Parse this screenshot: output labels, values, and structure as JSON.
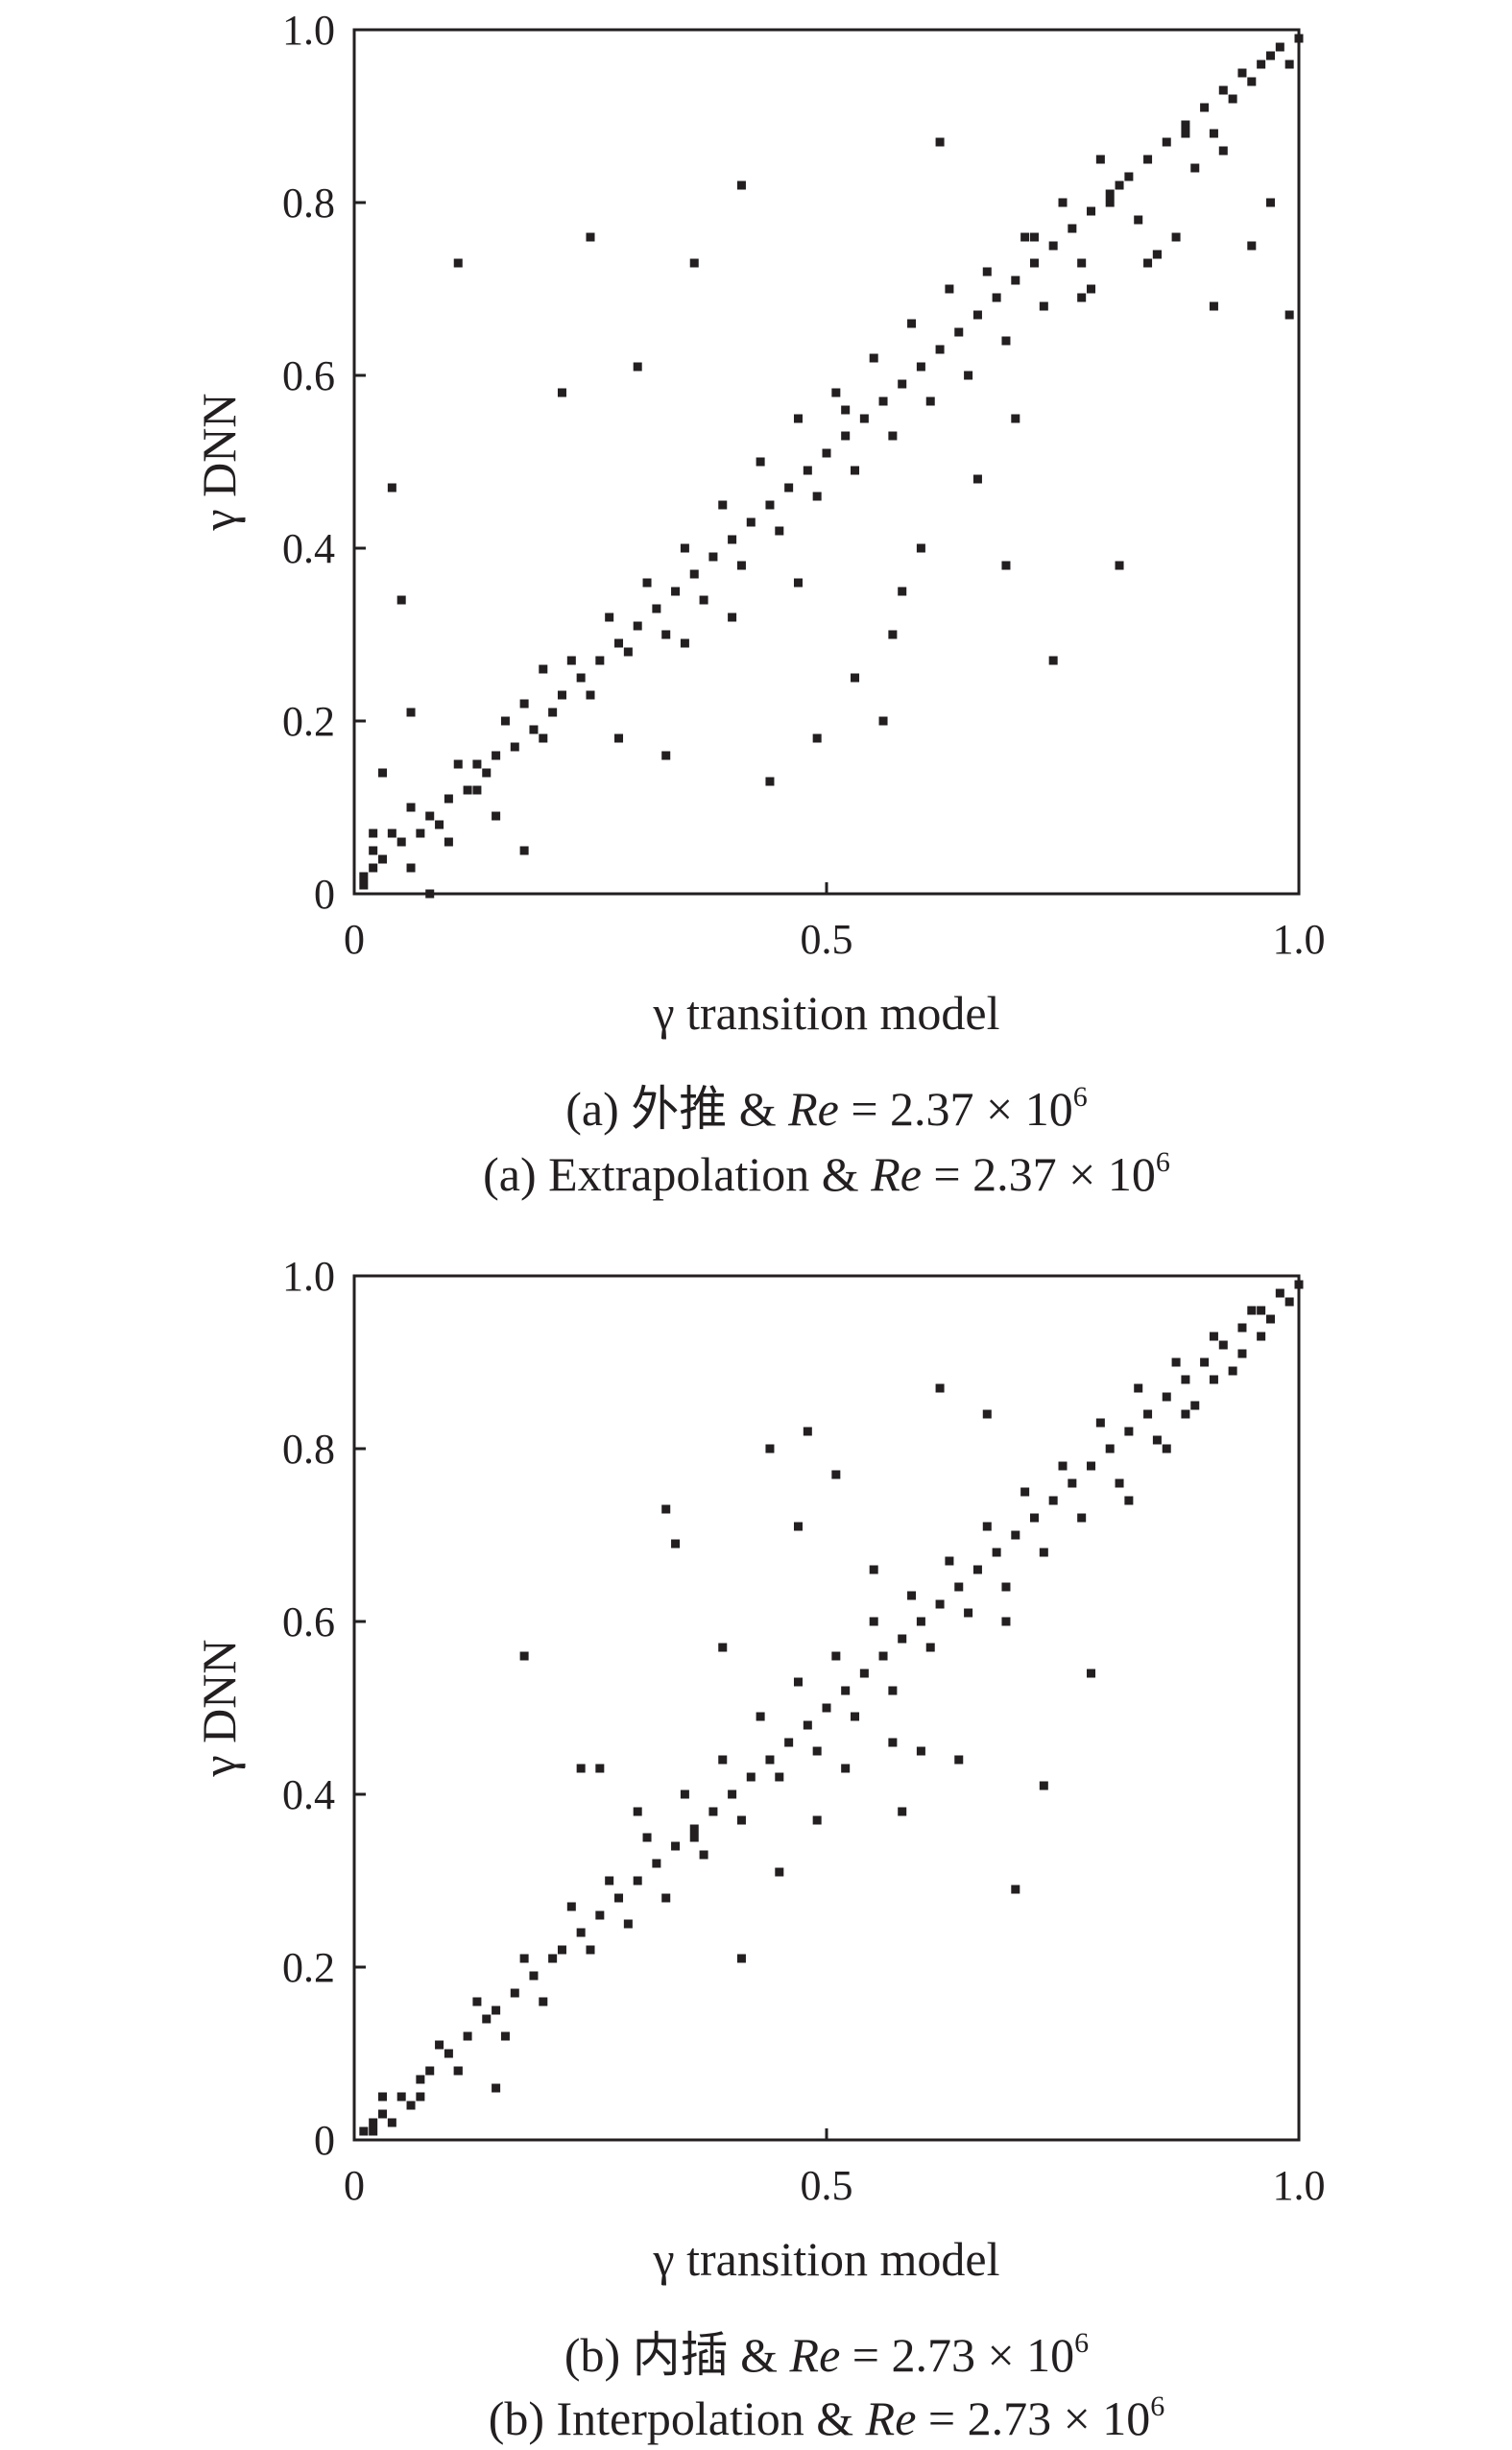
{
  "chart_data": [
    {
      "type": "scatter",
      "panel": "a",
      "xlabel": "γ transition model",
      "ylabel": "γ DNN",
      "xlim": [
        0,
        1.0
      ],
      "ylim": [
        0,
        1.0
      ],
      "x_ticks": [
        "0",
        "0.5",
        "1.0"
      ],
      "y_ticks": [
        "0",
        "0.2",
        "0.4",
        "0.6",
        "0.8",
        "1.0"
      ],
      "grid": false,
      "legend": "none",
      "marker_color": "#231f20",
      "caption_cn": {
        "prefix": "(a) 外推 & ",
        "italic": "Re",
        "rest": " = 2.37 × 10",
        "sup": "6"
      },
      "caption_en": {
        "prefix": "(a) Extrapolation & ",
        "italic": "Re",
        "rest": " = 2.37 × 10",
        "sup": "6"
      },
      "points": {
        "x": [
          0.01,
          0.02,
          0.03,
          0.05,
          0.07,
          0.08,
          0.1,
          0.12,
          0.14,
          0.15,
          0.17,
          0.19,
          0.21,
          0.22,
          0.24,
          0.26,
          0.28,
          0.3,
          0.32,
          0.34,
          0.36,
          0.38,
          0.4,
          0.42,
          0.44,
          0.46,
          0.48,
          0.5,
          0.52,
          0.54,
          0.56,
          0.58,
          0.6,
          0.62,
          0.64,
          0.66,
          0.68,
          0.7,
          0.72,
          0.74,
          0.76,
          0.78,
          0.8,
          0.82,
          0.84,
          0.86,
          0.88,
          0.9,
          0.92,
          0.94,
          0.96,
          0.98,
          1.0,
          0.02,
          0.04,
          0.06,
          0.09,
          0.11,
          0.13,
          0.16,
          0.18,
          0.2,
          0.23,
          0.25,
          0.27,
          0.29,
          0.31,
          0.33,
          0.35,
          0.37,
          0.39,
          0.41,
          0.43,
          0.45,
          0.47,
          0.49,
          0.51,
          0.53,
          0.55,
          0.57,
          0.59,
          0.61,
          0.63,
          0.65,
          0.67,
          0.69,
          0.71,
          0.73,
          0.75,
          0.77,
          0.79,
          0.81,
          0.83,
          0.85,
          0.87,
          0.89,
          0.91,
          0.93,
          0.95,
          0.97,
          0.99,
          0.06,
          0.04,
          0.11,
          0.25,
          0.05,
          0.36,
          0.41,
          0.49,
          0.52,
          0.56,
          0.62,
          0.74,
          0.81,
          0.44,
          0.3,
          0.33,
          0.57,
          0.53,
          0.22,
          0.69,
          0.6,
          0.72,
          0.78,
          0.85,
          0.91,
          0.97,
          0.99,
          0.95,
          0.92,
          0.88,
          0.84,
          0.8,
          0.77,
          0.7,
          0.66,
          0.58,
          0.47,
          0.4,
          0.35,
          0.28,
          0.2,
          0.13,
          0.03,
          0.01,
          0.02,
          0.06,
          0.08,
          0.1,
          0.15,
          0.18
        ],
        "y": [
          0.02,
          0.03,
          0.04,
          0.06,
          0.07,
          0.09,
          0.11,
          0.12,
          0.14,
          0.16,
          0.17,
          0.19,
          0.21,
          0.23,
          0.25,
          0.27,
          0.29,
          0.31,
          0.33,
          0.35,
          0.37,
          0.39,
          0.41,
          0.43,
          0.45,
          0.47,
          0.49,
          0.51,
          0.53,
          0.55,
          0.57,
          0.59,
          0.61,
          0.63,
          0.65,
          0.67,
          0.69,
          0.71,
          0.73,
          0.75,
          0.77,
          0.79,
          0.81,
          0.83,
          0.85,
          0.87,
          0.89,
          0.91,
          0.93,
          0.95,
          0.96,
          0.98,
          0.99,
          0.05,
          0.07,
          0.1,
          0.08,
          0.15,
          0.12,
          0.2,
          0.22,
          0.18,
          0.27,
          0.23,
          0.32,
          0.28,
          0.36,
          0.3,
          0.4,
          0.34,
          0.45,
          0.38,
          0.5,
          0.42,
          0.55,
          0.46,
          0.58,
          0.49,
          0.62,
          0.53,
          0.66,
          0.57,
          0.7,
          0.6,
          0.72,
          0.64,
          0.76,
          0.68,
          0.8,
          0.73,
          0.85,
          0.82,
          0.78,
          0.74,
          0.76,
          0.84,
          0.88,
          0.92,
          0.94,
          0.97,
          0.96,
          0.21,
          0.47,
          0.73,
          0.76,
          0.34,
          0.73,
          0.82,
          0.18,
          0.56,
          0.2,
          0.87,
          0.27,
          0.38,
          0.13,
          0.61,
          0.16,
          0.3,
          0.25,
          0.58,
          0.38,
          0.4,
          0.76,
          0.7,
          0.74,
          0.68,
          0.8,
          0.67,
          0.75,
          0.86,
          0.88,
          0.73,
          0.8,
          0.69,
          0.55,
          0.48,
          0.35,
          0.36,
          0.32,
          0.29,
          0.18,
          0.26,
          0.15,
          0.14,
          0.01,
          0.07,
          0.03,
          0.0,
          0.06,
          0.09,
          0.05
        ]
      }
    },
    {
      "type": "scatter",
      "panel": "b",
      "xlabel": "γ transition model",
      "ylabel": "γ DNN",
      "xlim": [
        0,
        1.0
      ],
      "ylim": [
        0,
        1.0
      ],
      "x_ticks": [
        "0",
        "0.5",
        "1.0"
      ],
      "y_ticks": [
        "0",
        "0.2",
        "0.4",
        "0.6",
        "0.8",
        "1.0"
      ],
      "grid": false,
      "legend": "none",
      "marker_color": "#231f20",
      "caption_cn": {
        "prefix": "(b) 内插 & ",
        "italic": "Re",
        "rest": " = 2.73 × 10",
        "sup": "6"
      },
      "caption_en": {
        "prefix": "(b) Interpolation & ",
        "italic": "Re",
        "rest": " = 2.73 × 10",
        "sup": "6"
      },
      "points": {
        "x": [
          0.01,
          0.02,
          0.03,
          0.05,
          0.07,
          0.08,
          0.1,
          0.12,
          0.14,
          0.15,
          0.17,
          0.19,
          0.21,
          0.22,
          0.24,
          0.26,
          0.28,
          0.3,
          0.32,
          0.34,
          0.36,
          0.38,
          0.4,
          0.42,
          0.44,
          0.46,
          0.48,
          0.5,
          0.52,
          0.54,
          0.56,
          0.58,
          0.6,
          0.62,
          0.64,
          0.66,
          0.68,
          0.7,
          0.72,
          0.74,
          0.76,
          0.78,
          0.8,
          0.82,
          0.84,
          0.86,
          0.88,
          0.9,
          0.92,
          0.94,
          0.96,
          0.98,
          1.0,
          0.03,
          0.06,
          0.09,
          0.11,
          0.13,
          0.16,
          0.18,
          0.2,
          0.23,
          0.25,
          0.27,
          0.29,
          0.31,
          0.33,
          0.35,
          0.37,
          0.39,
          0.41,
          0.43,
          0.45,
          0.47,
          0.49,
          0.51,
          0.53,
          0.55,
          0.57,
          0.59,
          0.61,
          0.63,
          0.65,
          0.67,
          0.69,
          0.71,
          0.73,
          0.75,
          0.77,
          0.79,
          0.81,
          0.83,
          0.85,
          0.87,
          0.89,
          0.91,
          0.93,
          0.95,
          0.97,
          0.18,
          0.33,
          0.34,
          0.39,
          0.44,
          0.48,
          0.47,
          0.51,
          0.55,
          0.62,
          0.67,
          0.7,
          0.73,
          0.78,
          0.6,
          0.57,
          0.41,
          0.24,
          0.26,
          0.3,
          0.52,
          0.58,
          0.64,
          0.69,
          0.45,
          0.49,
          0.36,
          0.15,
          0.11,
          0.07,
          0.04,
          0.02,
          0.82,
          0.86,
          0.88,
          0.91,
          0.94,
          0.96,
          0.99
        ],
        "y": [
          0.01,
          0.02,
          0.03,
          0.05,
          0.07,
          0.08,
          0.1,
          0.12,
          0.14,
          0.15,
          0.17,
          0.19,
          0.21,
          0.22,
          0.24,
          0.26,
          0.28,
          0.3,
          0.32,
          0.34,
          0.36,
          0.38,
          0.4,
          0.42,
          0.44,
          0.46,
          0.48,
          0.5,
          0.52,
          0.54,
          0.56,
          0.58,
          0.6,
          0.62,
          0.64,
          0.66,
          0.68,
          0.7,
          0.72,
          0.74,
          0.76,
          0.78,
          0.8,
          0.82,
          0.84,
          0.86,
          0.88,
          0.9,
          0.92,
          0.94,
          0.96,
          0.98,
          0.99,
          0.05,
          0.04,
          0.11,
          0.08,
          0.16,
          0.12,
          0.21,
          0.16,
          0.27,
          0.22,
          0.3,
          0.25,
          0.35,
          0.28,
          0.4,
          0.33,
          0.44,
          0.37,
          0.49,
          0.42,
          0.53,
          0.45,
          0.56,
          0.49,
          0.6,
          0.52,
          0.63,
          0.57,
          0.67,
          0.61,
          0.71,
          0.64,
          0.75,
          0.68,
          0.78,
          0.72,
          0.83,
          0.76,
          0.87,
          0.81,
          0.9,
          0.85,
          0.93,
          0.89,
          0.96,
          0.95,
          0.56,
          0.73,
          0.69,
          0.57,
          0.8,
          0.82,
          0.71,
          0.77,
          0.66,
          0.87,
          0.84,
          0.29,
          0.41,
          0.54,
          0.45,
          0.46,
          0.21,
          0.43,
          0.43,
          0.38,
          0.43,
          0.38,
          0.44,
          0.6,
          0.31,
          0.37,
          0.35,
          0.06,
          0.08,
          0.05,
          0.02,
          0.01,
          0.74,
          0.8,
          0.84,
          0.88,
          0.91,
          0.93,
          0.97
        ]
      }
    }
  ]
}
